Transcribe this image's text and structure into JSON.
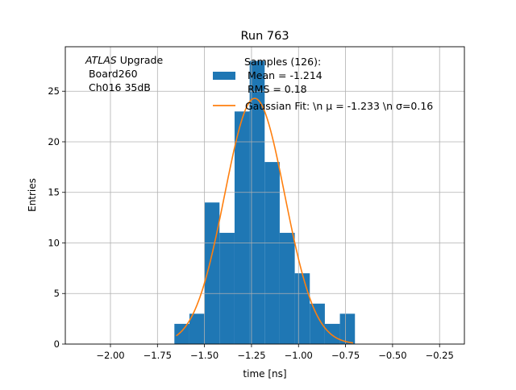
{
  "chart_data": {
    "type": "bar",
    "title": "Run 763",
    "xlabel": "time [ns]",
    "ylabel": "Entries",
    "xlim": [
      -2.24,
      -0.118
    ],
    "ylim": [
      0,
      29.4
    ],
    "grid": true,
    "xticks": [
      -2.0,
      -1.75,
      -1.5,
      -1.25,
      -1.0,
      -0.75,
      -0.5,
      -0.25
    ],
    "xtick_labels": [
      "−2.00",
      "−1.75",
      "−1.50",
      "−1.25",
      "−1.00",
      "−0.75",
      "−0.50",
      "−0.25"
    ],
    "yticks": [
      0,
      5,
      10,
      15,
      20,
      25
    ],
    "ytick_labels": [
      "0",
      "5",
      "10",
      "15",
      "20",
      "25"
    ],
    "histogram": {
      "bin_edges": [
        -1.66,
        -1.58,
        -1.5,
        -1.42,
        -1.34,
        -1.26,
        -1.18,
        -1.1,
        -1.02,
        -0.94,
        -0.86,
        -0.78,
        -0.7
      ],
      "counts": [
        2,
        3,
        14,
        11,
        23,
        28,
        18,
        11,
        7,
        4,
        2,
        3
      ],
      "color": "#1f77b4"
    },
    "fit": {
      "type": "gaussian",
      "amplitude": 24.3,
      "mu": -1.233,
      "sigma": 0.16,
      "x_range": [
        -1.65,
        -0.71
      ],
      "color": "#ff7f0e"
    },
    "legend": {
      "placement": "top-center",
      "entries": [
        {
          "kind": "bar",
          "lines": [
            "Samples (126):",
            " Mean = -1.214",
            " RMS = 0.18"
          ]
        },
        {
          "kind": "line",
          "lines": [
            "Gaussian Fit: \\n μ = -1.233 \\n σ=0.16"
          ]
        }
      ]
    },
    "annotation": {
      "italic": "ATLAS",
      "rest": " Upgrade",
      "line2": " Board260",
      "line3": " Ch016 35dB"
    }
  }
}
